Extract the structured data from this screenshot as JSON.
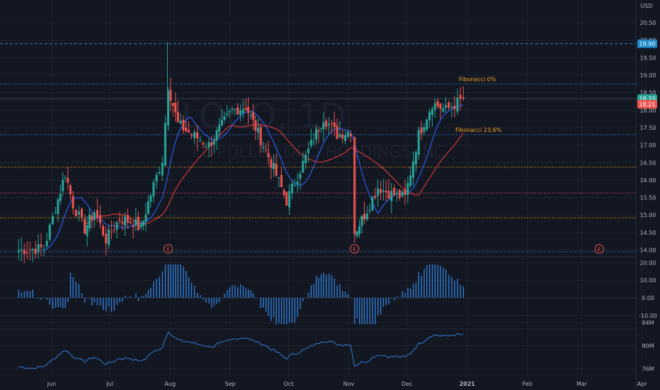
{
  "currency": "USD",
  "watermark": {
    "line1": "LOCO, 1D",
    "line2": "EL POLLO LOCO HOLDINGS INC"
  },
  "colors": {
    "background": "#131722",
    "up": "#26a69a",
    "down": "#ef5350",
    "ma_fast": "#2962ff",
    "ma_slow": "#e53935",
    "fib": "#f7a21b",
    "macd": "#2f7fd8",
    "obv": "#2f7fd8",
    "grid": "#1e222d"
  },
  "chart_data": [
    {
      "type": "candlestick",
      "name": "price",
      "x_labels": [
        "Jun",
        "Jul",
        "Aug",
        "Sep",
        "Oct",
        "Nov",
        "Dec",
        "2021",
        "Feb",
        "Mar",
        "Apr"
      ],
      "y_ticks": [
        "14.00",
        "14.50",
        "15.00",
        "15.50",
        "16.00",
        "16.50",
        "17.00",
        "17.50",
        "18.00",
        "18.50",
        "19.00",
        "19.50",
        "20.00",
        "20.50"
      ],
      "ylim": [
        13.75,
        20.65
      ],
      "key_points": [
        {
          "date": "2020-05-15",
          "close": 14.0
        },
        {
          "date": "2020-05-28",
          "close": 14.05
        },
        {
          "date": "2020-06-03",
          "close": 15.2
        },
        {
          "date": "2020-06-08",
          "close": 16.2
        },
        {
          "date": "2020-06-12",
          "close": 15.3
        },
        {
          "date": "2020-06-18",
          "close": 14.6
        },
        {
          "date": "2020-06-23",
          "close": 15.1
        },
        {
          "date": "2020-06-29",
          "close": 14.3
        },
        {
          "date": "2020-07-06",
          "close": 14.9
        },
        {
          "date": "2020-07-13",
          "close": 14.8
        },
        {
          "date": "2020-07-17",
          "close": 14.6
        },
        {
          "date": "2020-07-22",
          "close": 15.6
        },
        {
          "date": "2020-07-28",
          "close": 16.6
        },
        {
          "date": "2020-07-31",
          "close": 18.7
        },
        {
          "date": "2020-08-05",
          "close": 17.6
        },
        {
          "date": "2020-08-12",
          "close": 17.3
        },
        {
          "date": "2020-08-21",
          "close": 17.0
        },
        {
          "date": "2020-09-02",
          "close": 18.0
        },
        {
          "date": "2020-09-09",
          "close": 18.1
        },
        {
          "date": "2020-09-14",
          "close": 17.5
        },
        {
          "date": "2020-09-22",
          "close": 16.5
        },
        {
          "date": "2020-09-30",
          "close": 15.4
        },
        {
          "date": "2020-10-07",
          "close": 16.3
        },
        {
          "date": "2020-10-14",
          "close": 17.2
        },
        {
          "date": "2020-10-19",
          "close": 17.8
        },
        {
          "date": "2020-10-26",
          "close": 17.3
        },
        {
          "date": "2020-11-02",
          "close": 17.4
        },
        {
          "date": "2020-11-04",
          "close": 14.5
        },
        {
          "date": "2020-11-09",
          "close": 15.0
        },
        {
          "date": "2020-11-16",
          "close": 15.8
        },
        {
          "date": "2020-11-23",
          "close": 15.6
        },
        {
          "date": "2020-11-30",
          "close": 15.5
        },
        {
          "date": "2020-12-07",
          "close": 17.3
        },
        {
          "date": "2020-12-14",
          "close": 18.2
        },
        {
          "date": "2020-12-21",
          "close": 18.0
        },
        {
          "date": "2020-12-30",
          "close": 18.33
        }
      ],
      "levels": [
        {
          "price": 19.9,
          "label": "",
          "style": "dashed",
          "color": "#2f7fd8"
        },
        {
          "price": 18.75,
          "label": "Fibonacci 0%",
          "style": "dotted",
          "color": "#2f7fd8"
        },
        {
          "price": 17.3,
          "label": "Fibonacci 23.6%",
          "style": "dotted",
          "color": "#2f7fd8"
        },
        {
          "price": 16.37,
          "label": "",
          "style": "dotted",
          "color": "#f7a21b"
        },
        {
          "price": 15.63,
          "label": "",
          "style": "dotted",
          "color": "#e24a7a"
        },
        {
          "price": 14.92,
          "label": "",
          "style": "dotted",
          "color": "#f7a21b"
        },
        {
          "price": 13.95,
          "label": "",
          "style": "dotted",
          "color": "#2f7fd8"
        }
      ],
      "price_tags": [
        {
          "value": "19.90",
          "price": 19.9,
          "color": "#1e88c8"
        },
        {
          "value": "18.33",
          "price": 18.33,
          "color": "#26a69a"
        },
        {
          "value": "18.21",
          "price": 18.17,
          "color": "#ef5350"
        }
      ],
      "events": [
        {
          "label": "E",
          "date": "2020-07-31"
        },
        {
          "label": "E",
          "date": "2020-11-04"
        },
        {
          "label": "E",
          "date": "2021-03-10"
        }
      ]
    },
    {
      "type": "histogram",
      "name": "oscillator",
      "y_ticks": [
        "20.00",
        "10.00",
        "0.00",
        "-10.00"
      ],
      "ylim": [
        -16,
        22
      ]
    },
    {
      "type": "line",
      "name": "volume-line",
      "y_ticks": [
        "84M",
        "80M",
        "76M"
      ],
      "ylim": [
        72,
        85
      ]
    }
  ]
}
